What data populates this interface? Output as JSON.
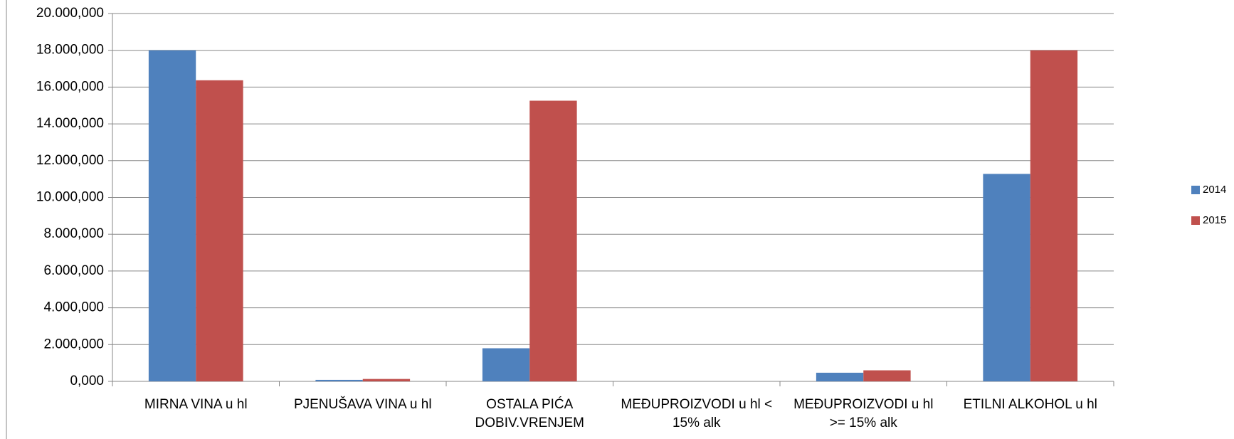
{
  "chart_data": {
    "type": "bar",
    "categories": [
      "MIRNA VINA u hl",
      "PJENUŠAVA VINA u hl",
      "OSTALA PIĆA DOBIV.VRENJEM",
      "MEĐUPROIZVODI u hl <  15% alk",
      "MEĐUPROIZVODI u hl >= 15% alk",
      "ETILNI ALKOHOL u hl"
    ],
    "series": [
      {
        "name": "2014",
        "color": "#4f81bd",
        "values": [
          18000000,
          80000,
          1800000,
          0,
          470000,
          11280000
        ]
      },
      {
        "name": "2015",
        "color": "#c0504d",
        "values": [
          16370000,
          130000,
          15260000,
          0,
          600000,
          18000000
        ]
      }
    ],
    "ylim": [
      0,
      20000000
    ],
    "yticks": [
      {
        "value": 0,
        "label": "0,000"
      },
      {
        "value": 2000000,
        "label": "2.000,000"
      },
      {
        "value": 4000000,
        "label": "4.000,000"
      },
      {
        "value": 6000000,
        "label": "6.000,000"
      },
      {
        "value": 8000000,
        "label": "8.000,000"
      },
      {
        "value": 10000000,
        "label": "10.000,000"
      },
      {
        "value": 12000000,
        "label": "12.000,000"
      },
      {
        "value": 14000000,
        "label": "14.000,000"
      },
      {
        "value": 16000000,
        "label": "16.000,000"
      },
      {
        "value": 18000000,
        "label": "18.000,000"
      },
      {
        "value": 20000000,
        "label": "20.000,000"
      }
    ],
    "grid": true,
    "legend": "right"
  }
}
